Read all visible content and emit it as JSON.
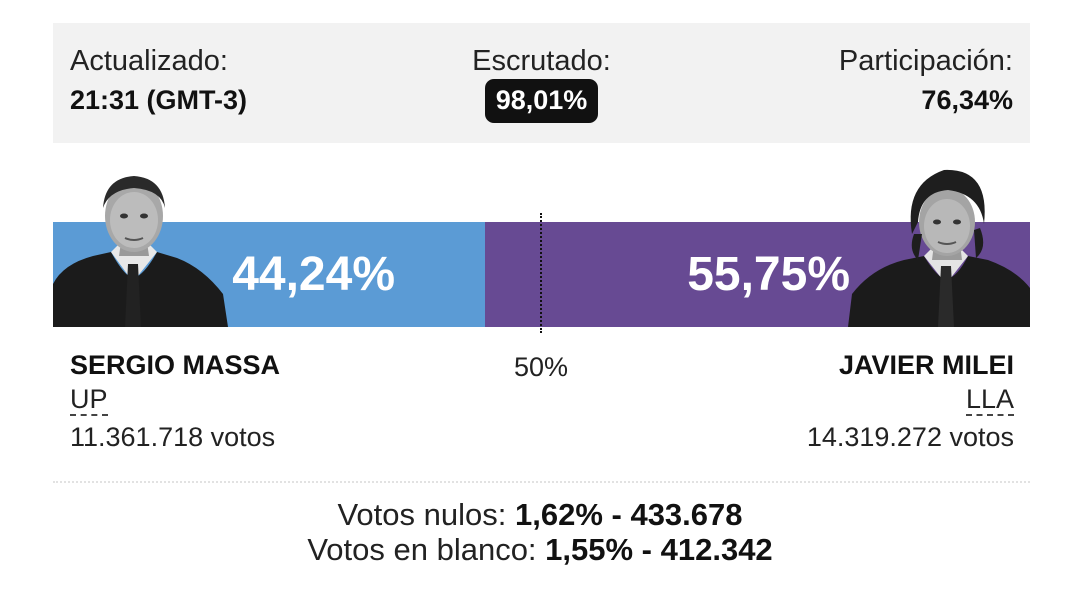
{
  "header": {
    "updated_label": "Actualizado:",
    "updated_value": "21:31 (GMT-3)",
    "counted_label": "Escrutado:",
    "counted_value": "98,01%",
    "turnout_label": "Participación:",
    "turnout_value": "76,34%"
  },
  "midline_label": "50%",
  "colors": {
    "massa": "#5b9bd5",
    "milei": "#674a93",
    "panel": "#f2f2f2"
  },
  "chart_data": {
    "type": "bar",
    "categories": [
      "SERGIO MASSA",
      "JAVIER MILEI"
    ],
    "values": [
      44.24,
      55.75
    ],
    "value_labels": [
      "44,24%",
      "55,75%"
    ],
    "reference_line": 50,
    "xlim": [
      0,
      100
    ]
  },
  "candidates": [
    {
      "name": "SERGIO MASSA",
      "party": "UP",
      "votes": "11.361.718 votos",
      "pct_label": "44,24%",
      "photo_icon": "man-portrait-icon"
    },
    {
      "name": "JAVIER MILEI",
      "party": "LLA",
      "votes": "14.319.272 votos",
      "pct_label": "55,75%",
      "photo_icon": "man-portrait-icon"
    }
  ],
  "extra": {
    "null_label": "Votos nulos:",
    "null_value": "1,62% - 433.678",
    "blank_label": "Votos en blanco:",
    "blank_value": "1,55% - 412.342"
  }
}
